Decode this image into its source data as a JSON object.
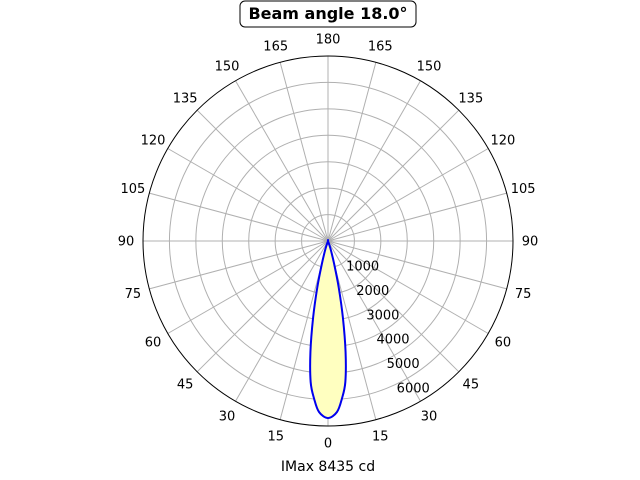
{
  "chart_data": {
    "type": "polar-line",
    "title": "Beam angle 18.0°",
    "xlabel": "IMax 8435 cd",
    "angle_ticks": [
      "0",
      "15",
      "30",
      "45",
      "60",
      "75",
      "90",
      "105",
      "120",
      "135",
      "150",
      "165",
      "180",
      "165",
      "150",
      "135",
      "120",
      "105",
      "90",
      "75",
      "60",
      "45",
      "30",
      "15"
    ],
    "radial_ticks": [
      1000,
      2000,
      3000,
      4000,
      5000,
      6000
    ],
    "rlim": [
      0,
      7000
    ],
    "grid": true,
    "series": [
      {
        "fill": "#ffffc0",
        "color": "#0000ee",
        "points": [
          {
            "angle": 0,
            "value": 6700
          },
          {
            "angle": 3,
            "value": 6480
          },
          {
            "angle": 5,
            "value": 6000
          },
          {
            "angle": 7,
            "value": 5380
          },
          {
            "angle": 9,
            "value": 4250
          },
          {
            "angle": 11,
            "value": 2950
          },
          {
            "angle": 13,
            "value": 1800
          },
          {
            "angle": 15,
            "value": 900
          },
          {
            "angle": 18,
            "value": 300
          },
          {
            "angle": 22,
            "value": 0
          }
        ]
      }
    ]
  }
}
